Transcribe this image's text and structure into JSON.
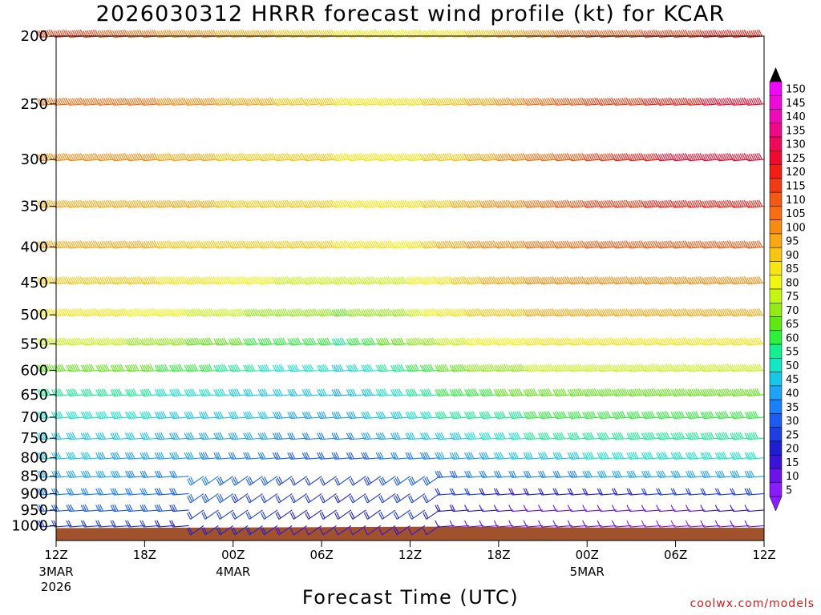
{
  "header": {
    "title": "2026030312 HRRR forecast wind profile (kt) for KCAR"
  },
  "footer": {
    "credit": "coolwx.com/models"
  },
  "chart_data": {
    "type": "wind-barb time-height profile",
    "title": "2026030312 HRRR forecast wind profile (kt) for KCAR",
    "xlabel": "Forecast Time (UTC)",
    "ylabel": "",
    "y_scale": "log",
    "ylim": [
      1050,
      200
    ],
    "y_ticks": [
      200,
      250,
      300,
      350,
      400,
      450,
      500,
      550,
      600,
      650,
      700,
      750,
      800,
      850,
      900,
      950,
      1000
    ],
    "xlim_hours": [
      0,
      48
    ],
    "x_ticks": [
      {
        "hour": 0,
        "label": "12Z",
        "sublabel": "3MAR",
        "sublabel2": "2026"
      },
      {
        "hour": 6,
        "label": "18Z",
        "sublabel": "",
        "sublabel2": ""
      },
      {
        "hour": 12,
        "label": "00Z",
        "sublabel": "4MAR",
        "sublabel2": ""
      },
      {
        "hour": 18,
        "label": "06Z",
        "sublabel": "",
        "sublabel2": ""
      },
      {
        "hour": 24,
        "label": "12Z",
        "sublabel": "",
        "sublabel2": ""
      },
      {
        "hour": 30,
        "label": "18Z",
        "sublabel": "",
        "sublabel2": ""
      },
      {
        "hour": 36,
        "label": "00Z",
        "sublabel": "5MAR",
        "sublabel2": ""
      },
      {
        "hour": 42,
        "label": "06Z",
        "sublabel": "",
        "sublabel2": ""
      },
      {
        "hour": 48,
        "label": "12Z",
        "sublabel": "",
        "sublabel2": ""
      }
    ],
    "legend": {
      "position": "right",
      "levels": [
        5,
        10,
        15,
        20,
        25,
        30,
        35,
        40,
        45,
        50,
        55,
        60,
        65,
        70,
        75,
        80,
        85,
        90,
        95,
        100,
        105,
        110,
        115,
        120,
        125,
        130,
        135,
        140,
        145,
        150
      ],
      "colors": [
        "#8a1dff",
        "#6a14e8",
        "#3a12d8",
        "#1f1fd0",
        "#1e3ee0",
        "#1a5cf0",
        "#1b7ff5",
        "#1ea3f5",
        "#18c6e8",
        "#14e6c6",
        "#14f090",
        "#2ef03c",
        "#5ee814",
        "#92ec14",
        "#c6f514",
        "#f0f514",
        "#f7e414",
        "#f7c614",
        "#f7a814",
        "#f78c14",
        "#f76e14",
        "#f05a14",
        "#f03c14",
        "#f01e14",
        "#ee0a2e",
        "#ee0a5a",
        "#ee0a86",
        "#ee0ab4",
        "#ee0ad8",
        "#ee0af5"
      ]
    },
    "terrain_color": "#a0522d",
    "surface_pressure_note": "ground shading below ~1003-1010 hPa",
    "wind_speed_by_level_kt": {
      "200": [
        115,
        110,
        100,
        95,
        90,
        85,
        80,
        85,
        95,
        105,
        110,
        115,
        120
      ],
      "250": [
        105,
        105,
        100,
        95,
        90,
        85,
        82,
        90,
        100,
        110,
        115,
        120,
        125
      ],
      "300": [
        100,
        100,
        95,
        90,
        88,
        85,
        82,
        90,
        100,
        110,
        118,
        125,
        125
      ],
      "350": [
        95,
        95,
        92,
        90,
        88,
        85,
        82,
        92,
        100,
        110,
        115,
        120,
        120
      ],
      "400": [
        95,
        92,
        90,
        88,
        88,
        85,
        80,
        95,
        100,
        105,
        110,
        110,
        110
      ],
      "450": [
        90,
        88,
        85,
        80,
        75,
        72,
        72,
        88,
        95,
        100,
        100,
        100,
        100
      ],
      "500": [
        85,
        82,
        78,
        72,
        68,
        65,
        68,
        85,
        90,
        92,
        95,
        95,
        95
      ],
      "550": [
        75,
        72,
        68,
        62,
        58,
        55,
        62,
        75,
        80,
        82,
        85,
        85,
        85
      ],
      "600": [
        65,
        62,
        60,
        55,
        48,
        45,
        55,
        65,
        70,
        72,
        75,
        75,
        75
      ],
      "650": [
        55,
        52,
        50,
        46,
        42,
        40,
        50,
        58,
        62,
        65,
        65,
        65,
        65
      ],
      "700": [
        50,
        47,
        45,
        42,
        40,
        38,
        45,
        52,
        55,
        58,
        60,
        60,
        60
      ],
      "750": [
        45,
        42,
        40,
        38,
        35,
        33,
        40,
        45,
        50,
        52,
        55,
        55,
        55
      ],
      "800": [
        42,
        40,
        38,
        34,
        30,
        28,
        32,
        38,
        42,
        45,
        48,
        48,
        48
      ],
      "850": [
        38,
        36,
        34,
        30,
        25,
        22,
        28,
        30,
        32,
        35,
        38,
        38,
        40
      ],
      "900": [
        35,
        32,
        30,
        26,
        22,
        20,
        25,
        22,
        15,
        18,
        20,
        22,
        25
      ],
      "950": [
        30,
        28,
        26,
        22,
        20,
        18,
        22,
        15,
        10,
        8,
        8,
        10,
        12
      ],
      "1000": [
        25,
        22,
        20,
        18,
        15,
        12,
        15,
        10,
        8,
        6,
        5,
        5,
        8
      ]
    },
    "series_hours": [
      0,
      4,
      8,
      12,
      16,
      20,
      24,
      28,
      32,
      36,
      40,
      44,
      48
    ]
  }
}
